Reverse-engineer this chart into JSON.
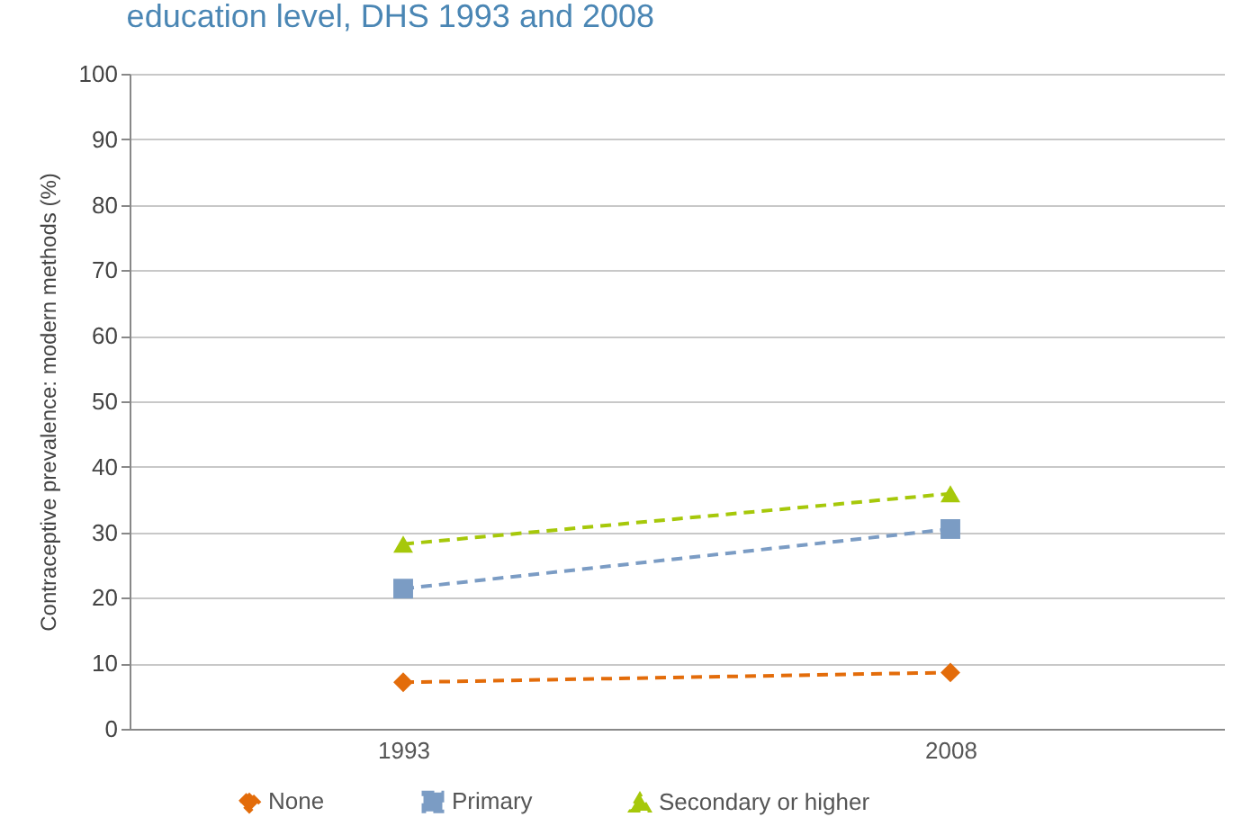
{
  "chart_data": {
    "type": "line",
    "title": "education level, DHS 1993 and 2008",
    "ylabel": "Contraceptive prevalence: modern methods (%)",
    "categories": [
      "1993",
      "2008"
    ],
    "series": [
      {
        "name": "None",
        "color": "#e36c0a",
        "marker": "diamond",
        "values": [
          7.1,
          8.6
        ]
      },
      {
        "name": "Primary",
        "color": "#7b9cc4",
        "marker": "square",
        "values": [
          21.4,
          30.5
        ]
      },
      {
        "name": "Secondary or higher",
        "color": "#a6c80a",
        "marker": "triangle",
        "values": [
          28.2,
          35.9
        ]
      }
    ],
    "ylim": [
      0,
      100
    ],
    "yticks": [
      0,
      10,
      20,
      30,
      40,
      50,
      60,
      70,
      80,
      90,
      100
    ],
    "grid": "y",
    "legend": "bottom",
    "line_style": "dashed"
  }
}
